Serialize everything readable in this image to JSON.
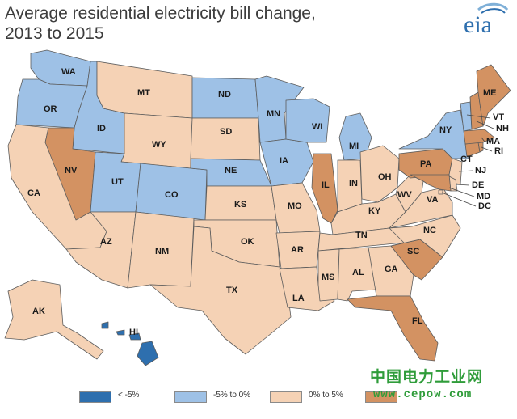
{
  "title_line1": "Average residential electricity bill change,",
  "title_line2": "2013 to 2015",
  "logo_text": "eia",
  "colors": {
    "lt_minus5": "#2e6fae",
    "minus5_to_0": "#9ec1e6",
    "zero_to_5": "#f5d2b5",
    "gt_5": "#d39262",
    "border": "#5c5c5c"
  },
  "legend": [
    {
      "label": "< -5%",
      "color": "#2e6fae"
    },
    {
      "label": "-5% to 0%",
      "color": "#9ec1e6"
    },
    {
      "label": "0% to 5%",
      "color": "#f5d2b5"
    },
    {
      "label": "",
      "color": "#d39262"
    }
  ],
  "states": [
    {
      "code": "WA",
      "category": "minus5_to_0"
    },
    {
      "code": "OR",
      "category": "minus5_to_0"
    },
    {
      "code": "CA",
      "category": "zero_to_5"
    },
    {
      "code": "ID",
      "category": "minus5_to_0"
    },
    {
      "code": "NV",
      "category": "gt_5"
    },
    {
      "code": "MT",
      "category": "zero_to_5"
    },
    {
      "code": "WY",
      "category": "zero_to_5"
    },
    {
      "code": "UT",
      "category": "minus5_to_0"
    },
    {
      "code": "CO",
      "category": "minus5_to_0"
    },
    {
      "code": "AZ",
      "category": "zero_to_5"
    },
    {
      "code": "NM",
      "category": "zero_to_5"
    },
    {
      "code": "ND",
      "category": "minus5_to_0"
    },
    {
      "code": "SD",
      "category": "zero_to_5"
    },
    {
      "code": "NE",
      "category": "minus5_to_0"
    },
    {
      "code": "KS",
      "category": "zero_to_5"
    },
    {
      "code": "OK",
      "category": "zero_to_5"
    },
    {
      "code": "TX",
      "category": "zero_to_5"
    },
    {
      "code": "MN",
      "category": "minus5_to_0"
    },
    {
      "code": "IA",
      "category": "minus5_to_0"
    },
    {
      "code": "MO",
      "category": "zero_to_5"
    },
    {
      "code": "AR",
      "category": "zero_to_5"
    },
    {
      "code": "LA",
      "category": "zero_to_5"
    },
    {
      "code": "WI",
      "category": "minus5_to_0"
    },
    {
      "code": "IL",
      "category": "gt_5"
    },
    {
      "code": "MI",
      "category": "minus5_to_0"
    },
    {
      "code": "IN",
      "category": "zero_to_5"
    },
    {
      "code": "OH",
      "category": "zero_to_5"
    },
    {
      "code": "KY",
      "category": "zero_to_5"
    },
    {
      "code": "TN",
      "category": "zero_to_5"
    },
    {
      "code": "MS",
      "category": "zero_to_5"
    },
    {
      "code": "AL",
      "category": "zero_to_5"
    },
    {
      "code": "GA",
      "category": "zero_to_5"
    },
    {
      "code": "FL",
      "category": "gt_5"
    },
    {
      "code": "SC",
      "category": "gt_5"
    },
    {
      "code": "NC",
      "category": "zero_to_5"
    },
    {
      "code": "VA",
      "category": "zero_to_5"
    },
    {
      "code": "WV",
      "category": "zero_to_5"
    },
    {
      "code": "PA",
      "category": "gt_5"
    },
    {
      "code": "NY",
      "category": "minus5_to_0"
    },
    {
      "code": "NJ",
      "category": "zero_to_5"
    },
    {
      "code": "DE",
      "category": "zero_to_5"
    },
    {
      "code": "MD",
      "category": "gt_5"
    },
    {
      "code": "DC",
      "category": "zero_to_5"
    },
    {
      "code": "CT",
      "category": "gt_5"
    },
    {
      "code": "RI",
      "category": "gt_5"
    },
    {
      "code": "MA",
      "category": "gt_5"
    },
    {
      "code": "VT",
      "category": "minus5_to_0"
    },
    {
      "code": "NH",
      "category": "gt_5"
    },
    {
      "code": "ME",
      "category": "gt_5"
    },
    {
      "code": "AK",
      "category": "zero_to_5"
    },
    {
      "code": "HI",
      "category": "lt_minus5"
    }
  ],
  "watermark_cn": "中国电力工业网",
  "watermark_url": "www.cepow.com"
}
